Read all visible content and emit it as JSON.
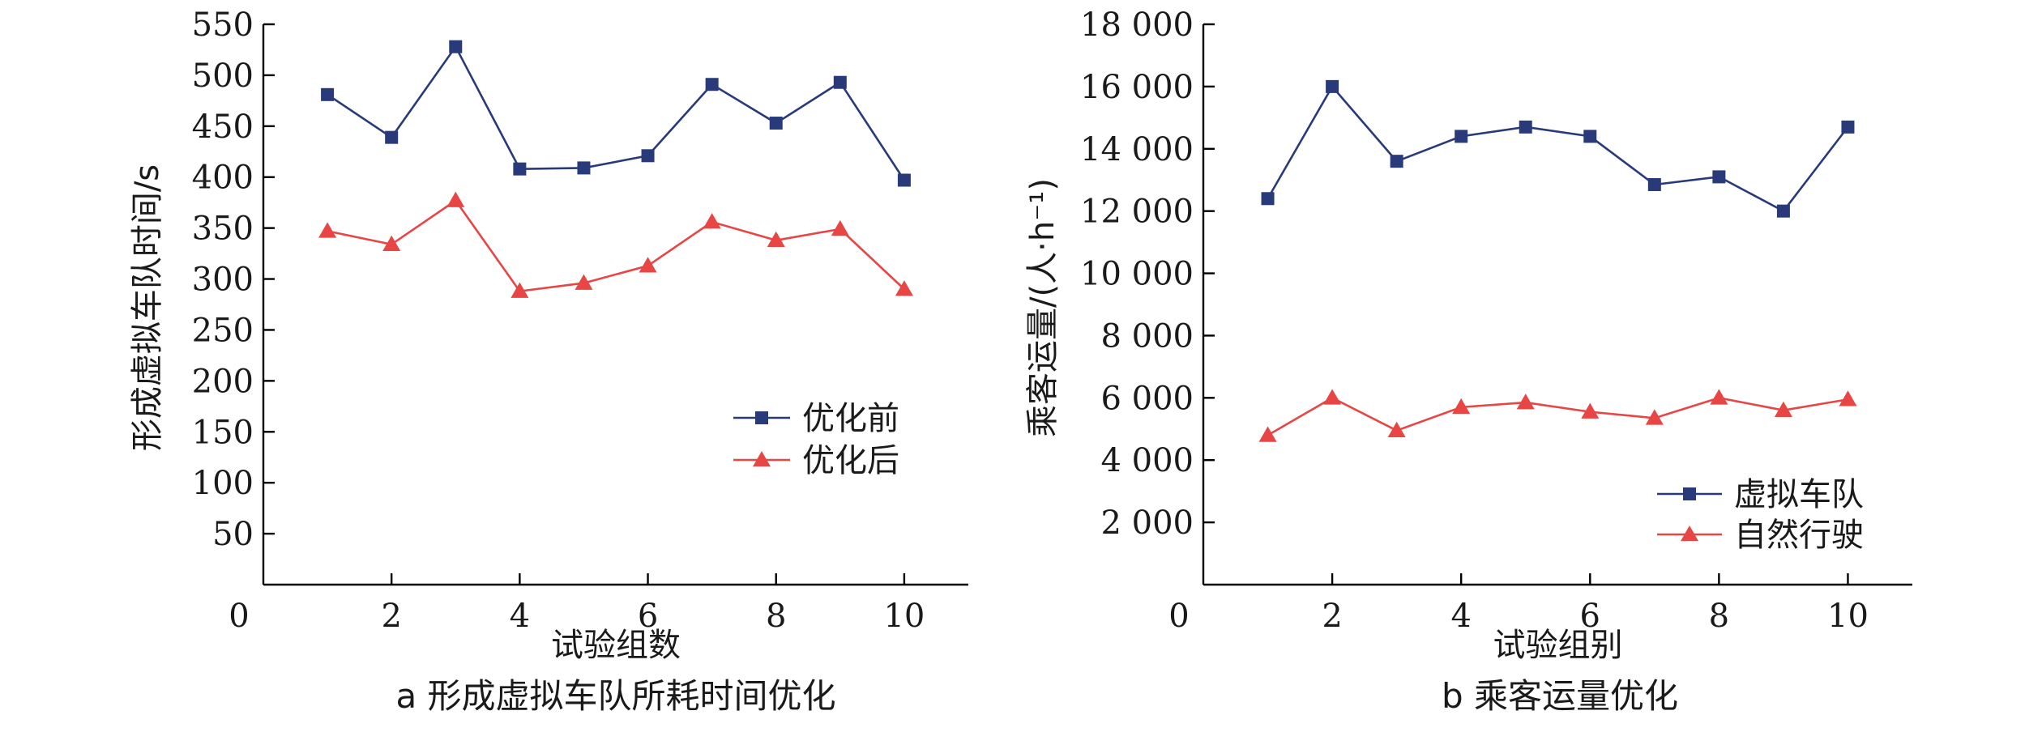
{
  "chart_data": [
    {
      "type": "line",
      "caption": "a  形成虚拟车队所耗时间优化",
      "xlabel": "试验组数",
      "ylabel": "形成虚拟车队时间/s",
      "xlim": [
        0,
        11
      ],
      "ylim": [
        0,
        550
      ],
      "xticks": [
        0,
        2,
        4,
        6,
        8,
        10
      ],
      "xtick_labels": [
        "0",
        "2",
        "4",
        "6",
        "8",
        "10"
      ],
      "yticks": [
        50,
        100,
        150,
        200,
        250,
        300,
        350,
        400,
        450,
        500,
        550
      ],
      "ytick_labels": [
        "50",
        "100",
        "150",
        "200",
        "250",
        "300",
        "350",
        "400",
        "450",
        "500",
        "550"
      ],
      "grid": false,
      "legend_position": "center-right",
      "x": [
        1,
        2,
        3,
        4,
        5,
        6,
        7,
        8,
        9,
        10
      ],
      "series": [
        {
          "name": "优化前",
          "color": "#283a7a",
          "marker": "square",
          "values": [
            481,
            439,
            528,
            408,
            409,
            421,
            491,
            453,
            493,
            397
          ]
        },
        {
          "name": "优化后",
          "color": "#e84545",
          "marker": "triangle",
          "values": [
            347,
            334,
            377,
            288,
            296,
            313,
            356,
            338,
            349,
            290
          ]
        }
      ]
    },
    {
      "type": "line",
      "caption": "b  乘客运量优化",
      "xlabel": "试验组别",
      "ylabel": "乘客运量/(人·h⁻¹)",
      "xlim": [
        0,
        11
      ],
      "ylim": [
        0,
        18000
      ],
      "xticks": [
        0,
        2,
        4,
        6,
        8,
        10
      ],
      "xtick_labels": [
        "0",
        "2",
        "4",
        "6",
        "8",
        "10"
      ],
      "yticks": [
        2000,
        4000,
        6000,
        8000,
        10000,
        12000,
        14000,
        16000,
        18000
      ],
      "ytick_labels": [
        "2 000",
        "4 000",
        "6 000",
        "8 000",
        "10 000",
        "12 000",
        "14 000",
        "16 000",
        "18 000"
      ],
      "grid": false,
      "legend_position": "bottom-right",
      "x": [
        1,
        2,
        3,
        4,
        5,
        6,
        7,
        8,
        9,
        10
      ],
      "series": [
        {
          "name": "虚拟车队",
          "color": "#283a7a",
          "marker": "square",
          "values": [
            12400,
            16000,
            13600,
            14400,
            14700,
            14400,
            12850,
            13100,
            12000,
            14700
          ]
        },
        {
          "name": "自然行驶",
          "color": "#e84545",
          "marker": "triangle",
          "values": [
            4800,
            6000,
            4950,
            5700,
            5850,
            5550,
            5350,
            6000,
            5600,
            5950
          ]
        }
      ]
    }
  ]
}
